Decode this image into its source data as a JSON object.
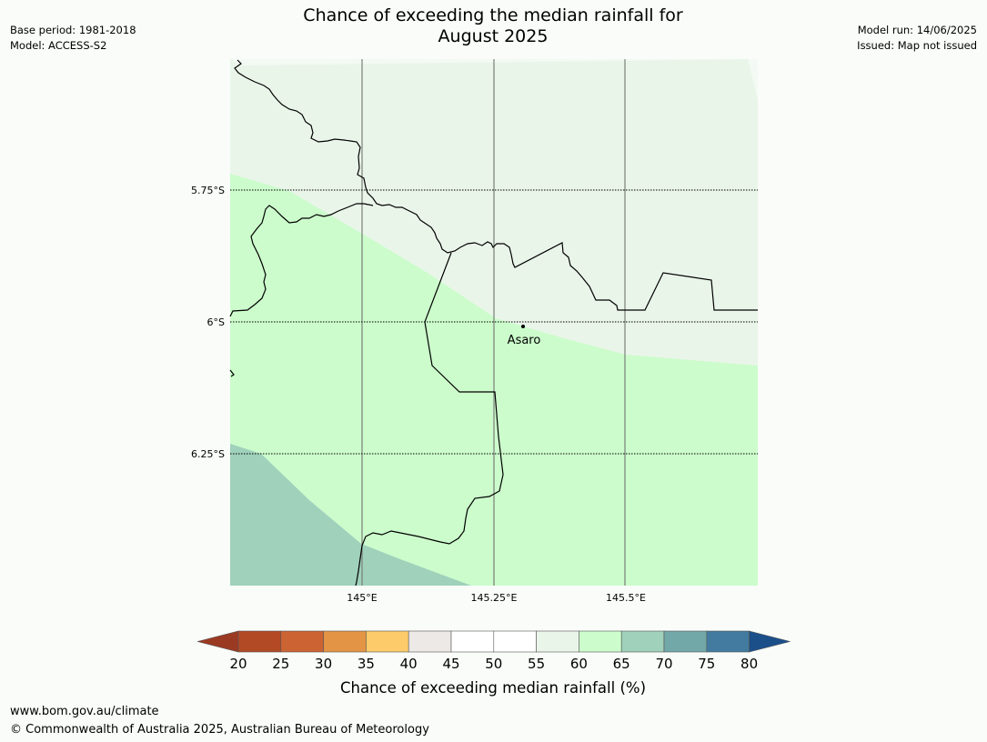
{
  "title_line1": "Chance of exceeding the median rainfall for",
  "title_line2": "August 2025",
  "base_period": "Base period: 1981-2018",
  "model": "Model: ACCESS-S2",
  "model_run": "Model run: 14/06/2025",
  "issued": "Issued: Map not issued",
  "map": {
    "lat_labels": [
      "5.75°S",
      "6°S",
      "6.25°S"
    ],
    "lon_labels": [
      "145°E",
      "145.25°E",
      "145.5°E"
    ],
    "place_label": "Asaro",
    "fill_colors": {
      "55-60": "#eaf5ea",
      "60-65": "#ccfccc",
      "65-70": "#9fd1bb"
    }
  },
  "colorbar": {
    "ticks": [
      "20",
      "25",
      "30",
      "35",
      "40",
      "45",
      "50",
      "55",
      "60",
      "65",
      "70",
      "75",
      "80"
    ],
    "label": "Chance of exceeding median rainfall (%)",
    "colors": [
      "#9b3a22",
      "#b24a26",
      "#cc6333",
      "#e39444",
      "#fdcb69",
      "#ede9e6",
      "#ffffff",
      "#ffffff",
      "#eaf5ea",
      "#ccfccc",
      "#9fd1bb",
      "#72a8a8",
      "#437a9f",
      "#1b4f8a"
    ]
  },
  "footer_url": "www.bom.gov.au/climate",
  "footer_copyright": "© Commonwealth of Australia 2025, Australian Bureau of Meteorology"
}
